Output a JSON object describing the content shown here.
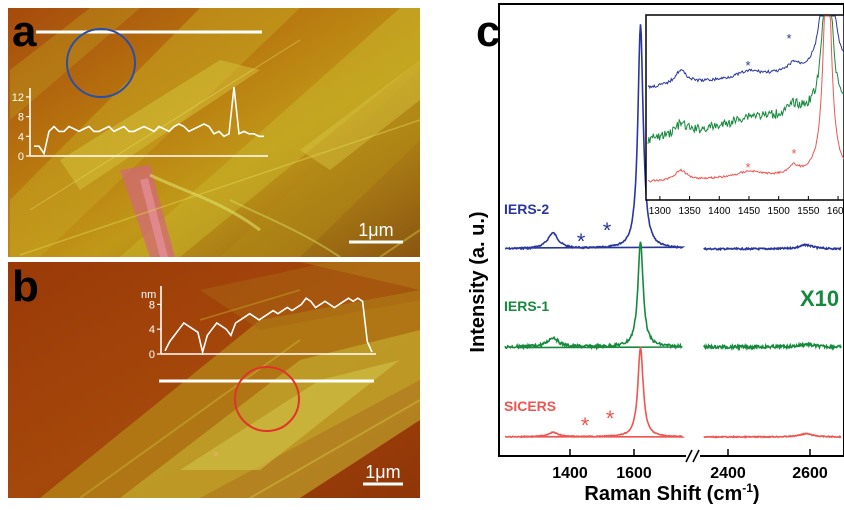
{
  "panels": {
    "a": {
      "letter": "a",
      "scale_label": "1μm",
      "inset_profile": {
        "y_ticks": [
          "12",
          "8",
          "4",
          "0"
        ],
        "heights": [
          2,
          2,
          0.5,
          5,
          6,
          5,
          5,
          6,
          5.5,
          5,
          5.5,
          6,
          5,
          5,
          5.5,
          6,
          5,
          5.5,
          6,
          5,
          5,
          5.5,
          6,
          5.5,
          5,
          6,
          5.5,
          5,
          6,
          6.5,
          6,
          5,
          5.5,
          6,
          6.5,
          6,
          4.5,
          5,
          4,
          4.5,
          14,
          4.5,
          5,
          4.5,
          4.5,
          4,
          4
        ]
      }
    },
    "b": {
      "letter": "b",
      "scale_label": "1μm",
      "inset_profile": {
        "unit_label": "nm",
        "y_ticks": [
          "8",
          "4",
          "0"
        ],
        "heights": [
          0.5,
          2,
          3,
          4,
          5,
          4.5,
          4,
          3.5,
          0.3,
          3,
          4,
          5,
          4.5,
          4,
          3,
          5,
          5.5,
          6,
          6.5,
          6,
          5.5,
          6,
          6.5,
          7,
          6.5,
          7,
          7.5,
          7,
          7.5,
          8,
          9,
          8.5,
          7.5,
          8,
          8.5,
          8,
          7.5,
          8,
          8.5,
          9,
          8.5,
          9,
          8.5,
          2,
          0.3
        ]
      }
    },
    "c": {
      "letter": "c",
      "x_label_main": "Raman Shift (cm",
      "x_label_sup": "-1",
      "x_label_end": ")",
      "y_label": "Intensity (a. u.)",
      "x_ticks": [
        "1400",
        "1600",
        "2400",
        "2600"
      ],
      "series_labels": [
        "IERS-2",
        "IERS-1",
        "SICERS"
      ],
      "magnification_label": "X10",
      "asterisk": "*",
      "inset_x_ticks": [
        "1300",
        "1350",
        "1400",
        "1450",
        "1500",
        "1550",
        "1600"
      ]
    }
  },
  "colors": {
    "iers2": "#2a36a0",
    "iers1": "#15893c",
    "sicers": "#ee5550",
    "circle_a": "#2a4fa8",
    "circle_b": "#e0332c"
  },
  "chart_data": {
    "type": "line",
    "xlabel": "Raman Shift (cm-1)",
    "ylabel": "Intensity (a. u.)",
    "x_ticks": [
      1400,
      1600,
      2400,
      2600
    ],
    "x_axis_break": "between 1600 and 2400",
    "series": [
      {
        "name": "IERS-2",
        "x": [
          1200,
          1330,
          1350,
          1450,
          1520,
          1560,
          1582,
          1600,
          1700,
          2400,
          2560,
          2660,
          2690,
          2720,
          2800
        ],
        "y": [
          0.3,
          0.36,
          0.32,
          0.31,
          0.33,
          0.55,
          3.0,
          0.45,
          0.3,
          0.3,
          0.32,
          0.5,
          0.7,
          0.45,
          0.32
        ]
      },
      {
        "name": "IERS-1",
        "x": [
          1200,
          1330,
          1350,
          1450,
          1520,
          1560,
          1582,
          1600,
          1700,
          2400,
          2560,
          2660,
          2690,
          2720,
          2800
        ],
        "y": [
          0.1,
          0.14,
          0.12,
          0.1,
          0.12,
          0.35,
          1.4,
          0.25,
          0.11,
          0.11,
          0.13,
          0.35,
          0.5,
          0.3,
          0.15
        ]
      },
      {
        "name": "SICERS",
        "x": [
          1200,
          1330,
          1350,
          1450,
          1520,
          1560,
          1582,
          1600,
          1700,
          2400,
          2560,
          2660,
          2690,
          2720,
          2800
        ],
        "y": [
          0.02,
          0.06,
          0.04,
          0.03,
          0.05,
          0.2,
          1.05,
          0.08,
          0.02,
          0.02,
          0.04,
          0.2,
          0.4,
          0.25,
          0.04
        ]
      }
    ],
    "annotations": [
      "*",
      "X10"
    ]
  }
}
